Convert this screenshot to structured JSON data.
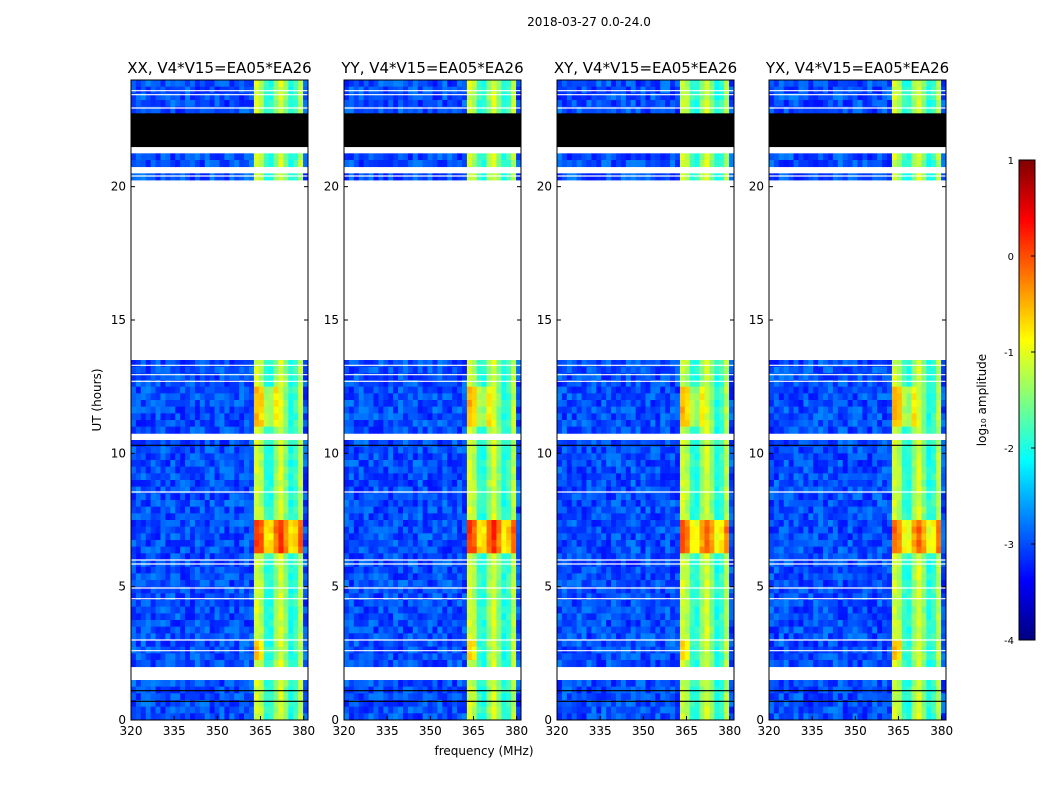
{
  "chart_data": {
    "type": "heatmap",
    "suptitle": "2018-03-27 0.0-24.0",
    "panels": [
      {
        "title": "XX, V4*V15=EA05*EA26"
      },
      {
        "title": "YY, V4*V15=EA05*EA26"
      },
      {
        "title": "XY, V4*V15=EA05*EA26"
      },
      {
        "title": "YX, V4*V15=EA05*EA26"
      }
    ],
    "xlabel": "frequency (MHz)",
    "ylabel": "UT (hours)",
    "x_range": [
      320,
      381.5
    ],
    "x_ticks": [
      320,
      335,
      350,
      365,
      380
    ],
    "y_range": [
      0,
      24
    ],
    "y_ticks": [
      0,
      5,
      10,
      15,
      20
    ],
    "colorbar": {
      "label": "log₁₀ amplitude",
      "range": [
        -4,
        1
      ],
      "ticks": [
        1,
        0,
        -1,
        -2,
        -3,
        -4
      ],
      "colors": [
        "#00007f",
        "#0000ff",
        "#007fff",
        "#00ffff",
        "#7fff7f",
        "#ffff00",
        "#ff7f00",
        "#ff0000",
        "#7f0000"
      ]
    },
    "features": {
      "no_data_hours": [
        [
          19.7,
          20.3
        ],
        [
          13.6,
          19.7
        ],
        [
          8.6,
          8.5
        ],
        [
          1.6,
          2.0
        ]
      ],
      "flagged_hours": [
        [
          21.2,
          22.8
        ],
        [
          10.7,
          10.85
        ]
      ],
      "bright_band_mhz": [
        360,
        380
      ],
      "peak_hours": [
        6.2,
        7.4
      ]
    }
  }
}
